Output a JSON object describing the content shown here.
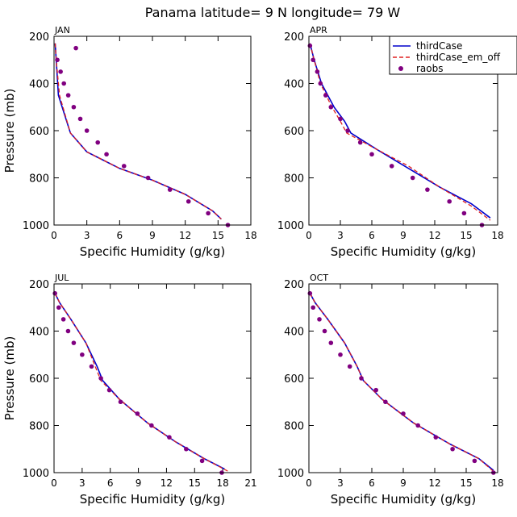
{
  "figure": {
    "title": "Panama  latitude= 9 N longitude= 79 W"
  },
  "legend": {
    "entries": [
      {
        "label": "thirdCase",
        "style": "solid",
        "color": "#0000cc"
      },
      {
        "label": "thirdCase_em_off",
        "style": "dashed",
        "color": "#e02020"
      },
      {
        "label": "raobs",
        "style": "dot",
        "color": "#800080"
      }
    ]
  },
  "colors": {
    "thirdCase": "#0000cc",
    "thirdCase_em_off": "#e02020",
    "raobs": "#800080"
  },
  "chart_data": [
    {
      "type": "line",
      "panel": "JAN",
      "xlabel": "Specific Humidity (g/kg)",
      "ylabel": "Pressure (mb)",
      "xlim": [
        0,
        18
      ],
      "ylim": [
        200,
        1000
      ],
      "y_inverted": true,
      "xticks": [
        0,
        3,
        6,
        9,
        12,
        15,
        18
      ],
      "yticks": [
        200,
        400,
        600,
        800,
        1000
      ],
      "series": [
        {
          "name": "thirdCase",
          "kind": "line",
          "points": [
            [
              0.1,
              230
            ],
            [
              0.2,
              300
            ],
            [
              0.4,
              450
            ],
            [
              1.5,
              610
            ],
            [
              3.0,
              690
            ],
            [
              6.0,
              760
            ],
            [
              9.0,
              810
            ],
            [
              12.0,
              870
            ],
            [
              14.5,
              940
            ],
            [
              15.3,
              975
            ]
          ]
        },
        {
          "name": "thirdCase_em_off",
          "kind": "dashed",
          "points": [
            [
              0.1,
              230
            ],
            [
              0.2,
              300
            ],
            [
              0.5,
              450
            ],
            [
              1.5,
              610
            ],
            [
              3.0,
              690
            ],
            [
              6.0,
              760
            ],
            [
              9.0,
              810
            ],
            [
              12.0,
              870
            ],
            [
              14.5,
              940
            ],
            [
              15.3,
              975
            ]
          ]
        },
        {
          "name": "raobs",
          "kind": "points",
          "points": [
            [
              0.3,
              300
            ],
            [
              0.6,
              350
            ],
            [
              0.9,
              400
            ],
            [
              1.3,
              450
            ],
            [
              1.8,
              500
            ],
            [
              2.4,
              550
            ],
            [
              3.0,
              600
            ],
            [
              4.0,
              650
            ],
            [
              4.8,
              700
            ],
            [
              6.4,
              750
            ],
            [
              8.6,
              800
            ],
            [
              10.6,
              850
            ],
            [
              12.3,
              900
            ],
            [
              14.1,
              950
            ],
            [
              15.9,
              1000
            ],
            [
              2.0,
              250
            ]
          ]
        }
      ]
    },
    {
      "type": "line",
      "panel": "APR",
      "xlabel": "Specific Humidity (g/kg)",
      "ylabel": "",
      "xlim": [
        0,
        18
      ],
      "ylim": [
        200,
        1000
      ],
      "y_inverted": true,
      "xticks": [
        0,
        3,
        6,
        9,
        12,
        15,
        18
      ],
      "yticks": [
        200,
        400,
        600,
        800,
        1000
      ],
      "series": [
        {
          "name": "thirdCase",
          "kind": "line",
          "points": [
            [
              0.1,
              230
            ],
            [
              0.5,
              300
            ],
            [
              1.2,
              400
            ],
            [
              2.4,
              500
            ],
            [
              3.4,
              560
            ],
            [
              4.0,
              610
            ],
            [
              6.5,
              680
            ],
            [
              9.5,
              760
            ],
            [
              12.5,
              840
            ],
            [
              15.5,
              910
            ],
            [
              17.3,
              970
            ]
          ]
        },
        {
          "name": "thirdCase_em_off",
          "kind": "dashed",
          "points": [
            [
              0.1,
              230
            ],
            [
              0.5,
              300
            ],
            [
              1.1,
              400
            ],
            [
              2.2,
              500
            ],
            [
              3.0,
              560
            ],
            [
              3.6,
              610
            ],
            [
              6.5,
              680
            ],
            [
              9.5,
              750
            ],
            [
              12.5,
              840
            ],
            [
              15.5,
              920
            ],
            [
              17.3,
              980
            ]
          ]
        },
        {
          "name": "raobs",
          "kind": "points",
          "points": [
            [
              0.1,
              240
            ],
            [
              0.4,
              300
            ],
            [
              0.8,
              350
            ],
            [
              1.1,
              400
            ],
            [
              1.6,
              450
            ],
            [
              2.1,
              500
            ],
            [
              3.0,
              550
            ],
            [
              3.7,
              600
            ],
            [
              4.9,
              650
            ],
            [
              6.0,
              700
            ],
            [
              7.9,
              750
            ],
            [
              9.9,
              800
            ],
            [
              11.3,
              850
            ],
            [
              13.4,
              900
            ],
            [
              14.8,
              950
            ],
            [
              16.5,
              1000
            ]
          ]
        }
      ]
    },
    {
      "type": "line",
      "panel": "JUL",
      "xlabel": "Specific Humidity (g/kg)",
      "ylabel": "Pressure (mb)",
      "xlim": [
        0,
        21
      ],
      "ylim": [
        200,
        1000
      ],
      "y_inverted": true,
      "xticks": [
        0,
        3,
        6,
        9,
        12,
        15,
        18,
        21
      ],
      "yticks": [
        200,
        400,
        600,
        800,
        1000
      ],
      "series": [
        {
          "name": "thirdCase",
          "kind": "line",
          "points": [
            [
              0.1,
              240
            ],
            [
              0.6,
              280
            ],
            [
              1.8,
              350
            ],
            [
              3.4,
              450
            ],
            [
              4.6,
              550
            ],
            [
              5.2,
              610
            ],
            [
              7.0,
              690
            ],
            [
              10.0,
              790
            ],
            [
              13.0,
              870
            ],
            [
              16.0,
              940
            ],
            [
              18.2,
              985
            ]
          ]
        },
        {
          "name": "thirdCase_em_off",
          "kind": "dashed",
          "points": [
            [
              0.1,
              240
            ],
            [
              0.6,
              280
            ],
            [
              1.8,
              350
            ],
            [
              3.4,
              450
            ],
            [
              4.4,
              550
            ],
            [
              5.0,
              610
            ],
            [
              7.0,
              690
            ],
            [
              10.0,
              790
            ],
            [
              13.0,
              870
            ],
            [
              16.0,
              940
            ],
            [
              18.6,
              995
            ]
          ]
        },
        {
          "name": "raobs",
          "kind": "points",
          "points": [
            [
              0.1,
              240
            ],
            [
              0.5,
              300
            ],
            [
              1.0,
              350
            ],
            [
              1.5,
              400
            ],
            [
              2.1,
              450
            ],
            [
              3.0,
              500
            ],
            [
              4.0,
              550
            ],
            [
              5.0,
              600
            ],
            [
              5.9,
              650
            ],
            [
              7.1,
              700
            ],
            [
              8.9,
              750
            ],
            [
              10.4,
              800
            ],
            [
              12.3,
              850
            ],
            [
              14.1,
              900
            ],
            [
              15.8,
              950
            ],
            [
              17.9,
              1000
            ]
          ]
        }
      ]
    },
    {
      "type": "line",
      "panel": "OCT",
      "xlabel": "Specific Humidity (g/kg)",
      "ylabel": "",
      "xlim": [
        0,
        18
      ],
      "ylim": [
        200,
        1000
      ],
      "y_inverted": true,
      "xticks": [
        0,
        3,
        6,
        9,
        12,
        15,
        18
      ],
      "yticks": [
        200,
        400,
        600,
        800,
        1000
      ],
      "series": [
        {
          "name": "thirdCase",
          "kind": "line",
          "points": [
            [
              0.1,
              240
            ],
            [
              0.6,
              280
            ],
            [
              1.8,
              350
            ],
            [
              3.4,
              450
            ],
            [
              4.6,
              550
            ],
            [
              5.2,
              610
            ],
            [
              7.0,
              690
            ],
            [
              10.0,
              790
            ],
            [
              13.5,
              880
            ],
            [
              16.2,
              940
            ],
            [
              17.6,
              990
            ]
          ]
        },
        {
          "name": "thirdCase_em_off",
          "kind": "dashed",
          "points": [
            [
              0.1,
              240
            ],
            [
              0.6,
              280
            ],
            [
              1.8,
              350
            ],
            [
              3.4,
              450
            ],
            [
              4.6,
              550
            ],
            [
              5.2,
              610
            ],
            [
              7.0,
              690
            ],
            [
              10.0,
              790
            ],
            [
              13.5,
              880
            ],
            [
              16.2,
              940
            ],
            [
              17.6,
              995
            ]
          ]
        },
        {
          "name": "raobs",
          "kind": "points",
          "points": [
            [
              0.1,
              240
            ],
            [
              0.4,
              300
            ],
            [
              1.0,
              350
            ],
            [
              1.5,
              400
            ],
            [
              2.1,
              450
            ],
            [
              3.0,
              500
            ],
            [
              3.9,
              550
            ],
            [
              5.0,
              600
            ],
            [
              6.4,
              650
            ],
            [
              7.3,
              700
            ],
            [
              9.0,
              750
            ],
            [
              10.4,
              800
            ],
            [
              12.1,
              850
            ],
            [
              13.7,
              900
            ],
            [
              15.8,
              950
            ],
            [
              17.6,
              1000
            ]
          ]
        }
      ]
    }
  ]
}
